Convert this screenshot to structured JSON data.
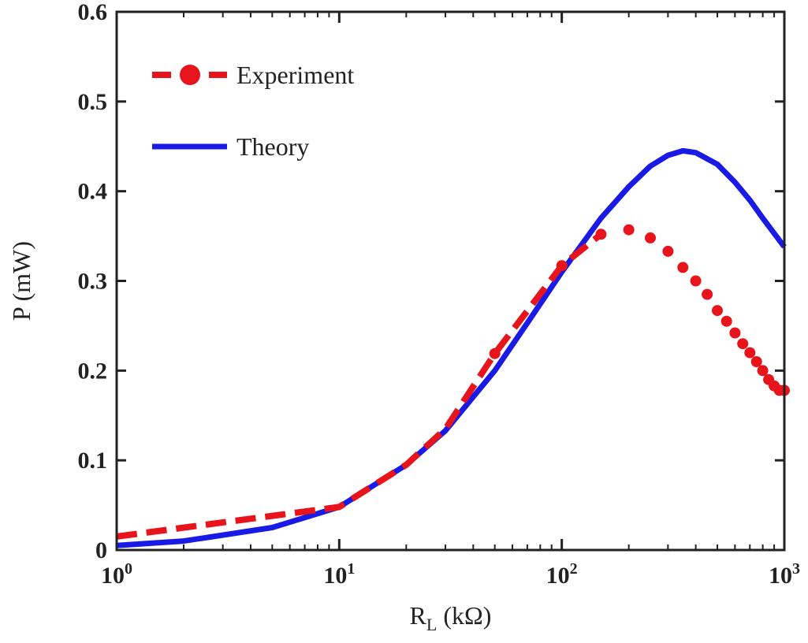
{
  "chart_data": {
    "type": "line",
    "xscale": "log",
    "xlim": [
      1,
      1000
    ],
    "ylim": [
      0,
      0.6
    ],
    "grid": false,
    "legend_position": "top-left",
    "xlabel": {
      "main": "R",
      "sub": "L",
      "rest": " (kΩ)"
    },
    "ylabel": "P (mW)",
    "x_ticks": [
      {
        "base": "10",
        "exp": "0"
      },
      {
        "base": "10",
        "exp": "1"
      },
      {
        "base": "10",
        "exp": "2"
      },
      {
        "base": "10",
        "exp": "3"
      }
    ],
    "y_ticks": [
      "0",
      "0.1",
      "0.2",
      "0.3",
      "0.4",
      "0.5",
      "0.6"
    ],
    "series": [
      {
        "name": "Experiment",
        "style": "dashed-markers",
        "color": "#e8141c",
        "x": [
          1,
          10,
          20,
          30,
          50,
          100,
          150,
          200,
          250,
          300,
          350,
          400,
          450,
          500,
          550,
          600,
          650,
          700,
          750,
          800,
          850,
          900,
          950,
          1000
        ],
        "y": [
          0.015,
          0.048,
          0.095,
          0.135,
          0.219,
          0.317,
          0.352,
          0.357,
          0.348,
          0.333,
          0.315,
          0.3,
          0.285,
          0.267,
          0.255,
          0.242,
          0.23,
          0.22,
          0.21,
          0.2,
          0.19,
          0.183,
          0.178,
          0.178
        ]
      },
      {
        "name": "Theory",
        "style": "solid",
        "color": "#1a1ae6",
        "x": [
          1,
          2,
          5,
          10,
          20,
          30,
          50,
          70,
          100,
          150,
          200,
          250,
          300,
          350,
          400,
          500,
          600,
          700,
          800,
          900,
          1000
        ],
        "y": [
          0.005,
          0.01,
          0.025,
          0.048,
          0.095,
          0.133,
          0.2,
          0.253,
          0.31,
          0.37,
          0.405,
          0.428,
          0.44,
          0.445,
          0.443,
          0.43,
          0.41,
          0.39,
          0.37,
          0.353,
          0.338
        ]
      }
    ]
  }
}
